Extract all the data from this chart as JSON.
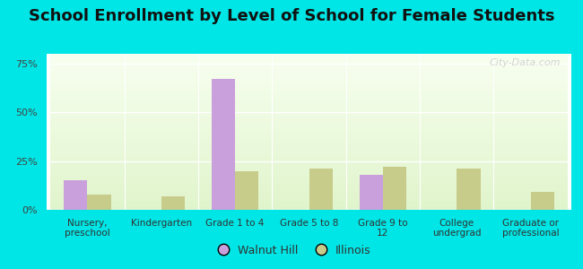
{
  "title": "School Enrollment by Level of School for Female Students",
  "categories": [
    "Nursery,\npreschool",
    "Kindergarten",
    "Grade 1 to 4",
    "Grade 5 to 8",
    "Grade 9 to\n12",
    "College\nundergrad",
    "Graduate or\nprofessional"
  ],
  "walnut_hill": [
    15,
    0,
    67,
    0,
    18,
    0,
    0
  ],
  "illinois": [
    8,
    7,
    20,
    21,
    22,
    21,
    9
  ],
  "walnut_hill_color": "#c9a0dc",
  "illinois_color": "#c8cc8a",
  "background_color": "#00e5e5",
  "ylim": [
    0,
    80
  ],
  "yticks": [
    0,
    25,
    50,
    75
  ],
  "ytick_labels": [
    "0%",
    "25%",
    "50%",
    "75%"
  ],
  "title_fontsize": 13,
  "legend_labels": [
    "Walnut Hill",
    "Illinois"
  ],
  "watermark": "City-Data.com"
}
